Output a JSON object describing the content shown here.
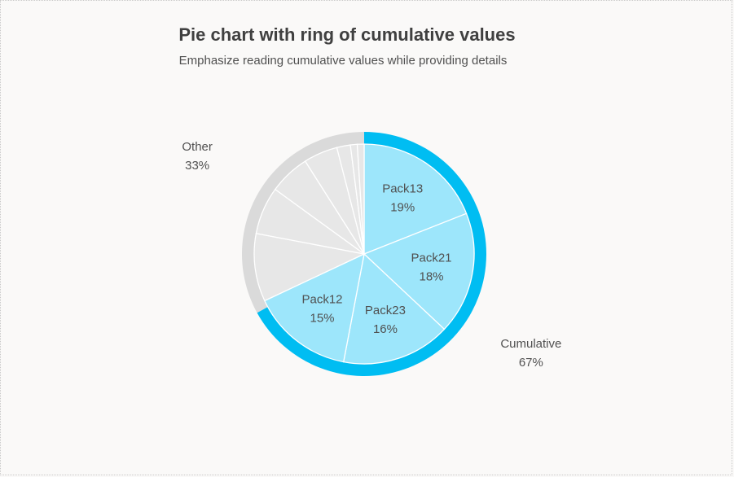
{
  "title": "Pie chart with ring of cumulative values",
  "subtitle": "Emphasize reading cumulative values while providing details",
  "colors": {
    "highlight_slice": "#9de6fb",
    "highlight_ring": "#00bdf2",
    "other_slice": "#e7e7e7",
    "other_ring": "#dadada",
    "slice_border": "#ffffff",
    "label": "#505050"
  },
  "chart_data": {
    "type": "pie",
    "title": "Pie chart with ring of cumulative values",
    "subtitle": "Emphasize reading cumulative values while providing details",
    "slices": [
      {
        "name": "Pack13",
        "value": 19,
        "group": "cumulative",
        "label": "Pack13",
        "pct": "19%"
      },
      {
        "name": "Pack21",
        "value": 18,
        "group": "cumulative",
        "label": "Pack21",
        "pct": "18%"
      },
      {
        "name": "Pack23",
        "value": 16,
        "group": "cumulative",
        "label": "Pack23",
        "pct": "16%"
      },
      {
        "name": "Pack12",
        "value": 15,
        "group": "cumulative",
        "label": "Pack12",
        "pct": "15%"
      },
      {
        "value": 10,
        "group": "other"
      },
      {
        "value": 7,
        "group": "other"
      },
      {
        "value": 6,
        "group": "other"
      },
      {
        "value": 5,
        "group": "other"
      },
      {
        "value": 2,
        "group": "other"
      },
      {
        "value": 1,
        "group": "other"
      },
      {
        "value": 1,
        "group": "other"
      }
    ],
    "ring": [
      {
        "name": "Cumulative",
        "value": 67,
        "label": "Cumulative",
        "pct": "67%"
      },
      {
        "name": "Other",
        "value": 33,
        "label": "Other",
        "pct": "33%"
      }
    ]
  }
}
